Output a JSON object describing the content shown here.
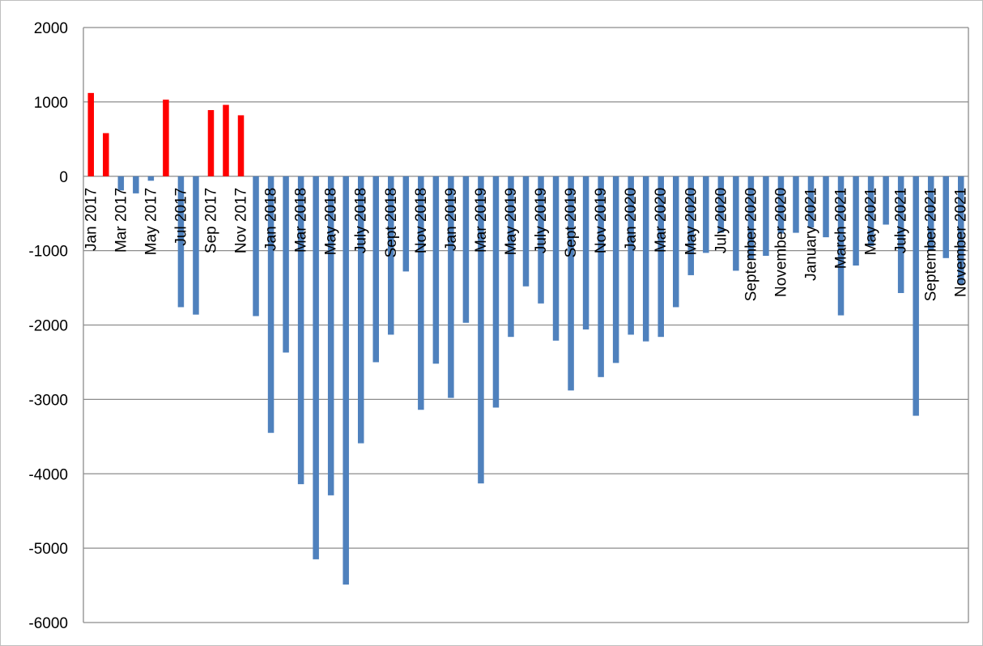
{
  "chart_data": {
    "type": "bar",
    "title": "",
    "xlabel": "",
    "ylabel": "",
    "ylim": [
      -6000,
      2000
    ],
    "yticks": [
      2000,
      1000,
      0,
      -1000,
      -2000,
      -3000,
      -4000,
      -5000,
      -6000
    ],
    "grid": true,
    "legend": "none",
    "colors": {
      "positive": "#ff0000",
      "negative": "#4f81bd"
    },
    "categories": [
      "Jan 2017",
      "Feb 2017",
      "Mar 2017",
      "Apr 2017",
      "May 2017",
      "Jun 2017",
      "Jul 2017",
      "Aug 2017",
      "Sep 2017",
      "Oct 2017",
      "Nov 2017",
      "Dec 2017",
      "Jan 2018",
      "Feb 2018",
      "Mar 2018",
      "Apr 2018",
      "May 2018",
      "Jun 2018",
      "July 2018",
      "Aug 2018",
      "Sept 2018",
      "Oct 2018",
      "Nov 2018",
      "Dec 2018",
      "Jan 2019",
      "Feb 2019",
      "Mar 2019",
      "Apr 2019",
      "May 2019",
      "Jun 2019",
      "July 2019",
      "Aug 2019",
      "Sept 2019",
      "Oct 2019",
      "Nov 2019",
      "Dec 2019",
      "Jan 2020",
      "Feb 2020",
      "Mar 2020",
      "Apr 2020",
      "May 2020",
      "Jun 2020",
      "July 2020",
      "Aug 2020",
      "September 2020",
      "October 2020",
      "November 2020",
      "December 2020",
      "January 2021",
      "February 2021",
      "March 2021",
      "April 2021",
      "May 2021",
      "June 2021",
      "July 2021",
      "August 2021",
      "September 2021",
      "October 2021",
      "November 2021"
    ],
    "tick_labels": [
      "Jan 2017",
      "",
      "Mar 2017",
      "",
      "May 2017",
      "",
      "Jul 2017",
      "",
      "Sep 2017",
      "",
      "Nov 2017",
      "",
      "Jan 2018",
      "",
      "Mar 2018",
      "",
      "May 2018",
      "",
      "July 2018",
      "",
      "Sept 2018",
      "",
      "Nov 2018",
      "",
      "Jan 2019",
      "",
      "Mar 2019",
      "",
      "May 2019",
      "",
      "July 2019",
      "",
      "Sept 2019",
      "",
      "Nov 2019",
      "",
      "Jan 2020",
      "",
      "Mar 2020",
      "",
      "May 2020",
      "",
      "July 2020",
      "",
      "September 2020",
      "",
      "November 2020",
      "",
      "January 2021",
      "",
      "March 2021",
      "",
      "May 2021",
      "",
      "July 2021",
      "",
      "September 2021",
      "",
      "November 2021"
    ],
    "values": [
      1120,
      580,
      -190,
      -230,
      -60,
      1030,
      -1760,
      -1860,
      890,
      960,
      820,
      -1880,
      -3450,
      -2370,
      -4140,
      -5150,
      -4290,
      -5490,
      -3590,
      -2500,
      -2130,
      -1280,
      -3140,
      -2520,
      -2980,
      -1970,
      -4130,
      -3110,
      -2160,
      -1480,
      -1710,
      -2210,
      -2880,
      -2060,
      -2700,
      -2510,
      -2130,
      -2220,
      -2160,
      -1760,
      -1330,
      -1030,
      -760,
      -1270,
      -1120,
      -1070,
      -770,
      -760,
      -690,
      -820,
      -1870,
      -1200,
      -940,
      -650,
      -1570,
      -3220,
      -1000,
      -1100,
      -1450
    ]
  }
}
